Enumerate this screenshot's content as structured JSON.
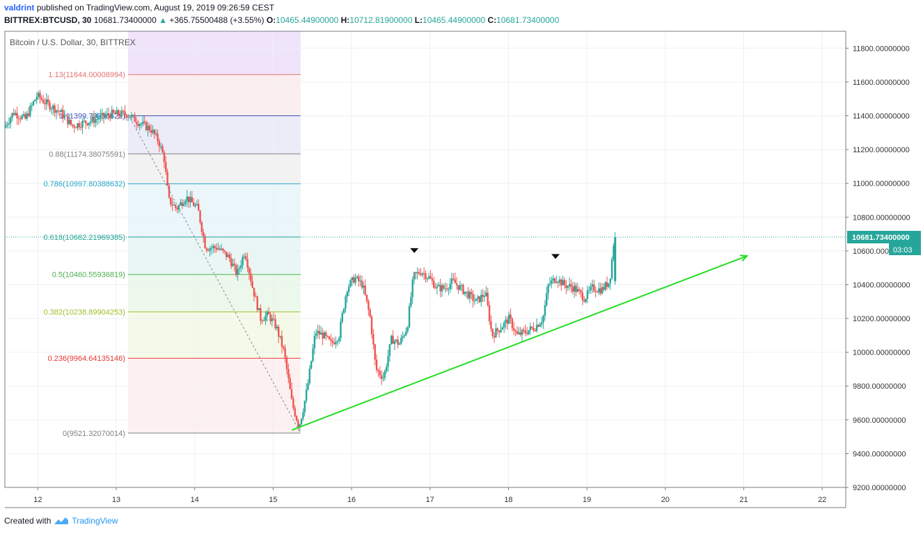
{
  "header": {
    "author": "valdrint",
    "published": "published on TradingView.com, August 19, 2019 09:26:59 CEST",
    "symbol": "BITTREX:BTCUSD, 30",
    "last": "10681.73400000",
    "change": "+365.75500488 (+3.55%)",
    "o_label": "O:",
    "o": "10465.44900000",
    "h_label": "H:",
    "h": "10712.81900000",
    "l_label": "L:",
    "l": "10465.44900000",
    "c_label": "C:",
    "c": "10681.73400000"
  },
  "footer": {
    "created": "Created with",
    "brand": "TradingView"
  },
  "chart_data": {
    "type": "candlestick",
    "title": "Bitcoin / U.S. Dollar, 30, BITTREX",
    "ylim": [
      9200,
      11900
    ],
    "xlim": [
      11.58,
      22.3
    ],
    "y_ticks": [
      "9200.00000000",
      "9400.00000000",
      "9600.00000000",
      "9800.00000000",
      "10000.00000000",
      "10200.00000000",
      "10400.00000000",
      "10600.00000000",
      "10800.00000000",
      "11000.00000000",
      "11200.00000000",
      "11400.00000000",
      "11600.00000000",
      "11800.00000000"
    ],
    "x_ticks": [
      "12",
      "13",
      "14",
      "15",
      "16",
      "17",
      "18",
      "19",
      "20",
      "21",
      "22"
    ],
    "last_price_label": "10681.73400000",
    "countdown_label": "03:03",
    "colors": {
      "up": "#26a69a",
      "down": "#ef5350",
      "trend": "#22dd22"
    },
    "fib_levels": [
      {
        "label": "1.13(11644.00008994)",
        "price": 11644.0,
        "color": "#e57373"
      },
      {
        "label": "1(11399.79830629)",
        "price": 11399.8,
        "color": "#3f51b5"
      },
      {
        "label": "0.88(11174.38075591)",
        "price": 11174.38,
        "color": "#808080"
      },
      {
        "label": "0.786(10997.80388632)",
        "price": 10997.8,
        "color": "#26a6c8"
      },
      {
        "label": "0.618(10682.21969385)",
        "price": 10682.22,
        "color": "#26a69a"
      },
      {
        "label": "0.5(10460.55936819)",
        "price": 10460.56,
        "color": "#4caf50"
      },
      {
        "label": "0.382(10238.89904253)",
        "price": 10238.9,
        "color": "#9cbf2a"
      },
      {
        "label": "0.236(9964.64135146)",
        "price": 9964.64,
        "color": "#e53935"
      },
      {
        "label": "0(9521.32070014)",
        "price": 9521.32,
        "color": "#808080"
      }
    ],
    "fib_zone_colors": [
      "#f0e4fb",
      "#fbeeee",
      "#ececf8",
      "#f2f2f2",
      "#eaf6fa",
      "#e9f6f4",
      "#ecf8ec",
      "#f5fae8",
      "#fcf0f0"
    ],
    "price_path": [
      [
        11.58,
        11330
      ],
      [
        11.7,
        11420
      ],
      [
        11.85,
        11380
      ],
      [
        12.0,
        11520
      ],
      [
        12.1,
        11480
      ],
      [
        12.3,
        11420
      ],
      [
        12.45,
        11340
      ],
      [
        12.6,
        11360
      ],
      [
        12.75,
        11380
      ],
      [
        12.95,
        11410
      ],
      [
        13.15,
        11410
      ],
      [
        13.3,
        11360
      ],
      [
        13.45,
        11320
      ],
      [
        13.55,
        11250
      ],
      [
        13.62,
        11150
      ],
      [
        13.68,
        10900
      ],
      [
        13.78,
        10850
      ],
      [
        13.9,
        10920
      ],
      [
        14.05,
        10850
      ],
      [
        14.15,
        10620
      ],
      [
        14.3,
        10620
      ],
      [
        14.45,
        10560
      ],
      [
        14.55,
        10460
      ],
      [
        14.65,
        10600
      ],
      [
        14.75,
        10380
      ],
      [
        14.85,
        10200
      ],
      [
        14.95,
        10220
      ],
      [
        15.05,
        10150
      ],
      [
        15.15,
        10000
      ],
      [
        15.25,
        9700
      ],
      [
        15.34,
        9560
      ],
      [
        15.4,
        9680
      ],
      [
        15.45,
        9800
      ],
      [
        15.55,
        10120
      ],
      [
        15.65,
        10100
      ],
      [
        15.75,
        10050
      ],
      [
        15.85,
        10100
      ],
      [
        15.95,
        10380
      ],
      [
        16.05,
        10440
      ],
      [
        16.15,
        10400
      ],
      [
        16.25,
        10200
      ],
      [
        16.32,
        9900
      ],
      [
        16.42,
        9850
      ],
      [
        16.52,
        10080
      ],
      [
        16.62,
        10050
      ],
      [
        16.72,
        10150
      ],
      [
        16.8,
        10450
      ],
      [
        16.9,
        10480
      ],
      [
        17.0,
        10440
      ],
      [
        17.1,
        10380
      ],
      [
        17.2,
        10380
      ],
      [
        17.3,
        10420
      ],
      [
        17.45,
        10360
      ],
      [
        17.6,
        10300
      ],
      [
        17.72,
        10350
      ],
      [
        17.8,
        10100
      ],
      [
        17.92,
        10150
      ],
      [
        18.02,
        10200
      ],
      [
        18.12,
        10100
      ],
      [
        18.22,
        10120
      ],
      [
        18.35,
        10150
      ],
      [
        18.45,
        10200
      ],
      [
        18.52,
        10400
      ],
      [
        18.62,
        10440
      ],
      [
        18.72,
        10400
      ],
      [
        18.85,
        10380
      ],
      [
        18.98,
        10320
      ],
      [
        19.08,
        10380
      ],
      [
        19.2,
        10370
      ],
      [
        19.3,
        10420
      ],
      [
        19.36,
        10681
      ]
    ],
    "trendline": {
      "x1": 15.24,
      "y1": 9540,
      "x2": 21.04,
      "y2": 10570
    },
    "fib_diagonal": {
      "x1": 13.15,
      "y1": 11410,
      "x2": 15.35,
      "y2": 9521
    },
    "markers": [
      {
        "x": 16.8,
        "y": 10600
      },
      {
        "x": 18.6,
        "y": 10565
      }
    ]
  }
}
